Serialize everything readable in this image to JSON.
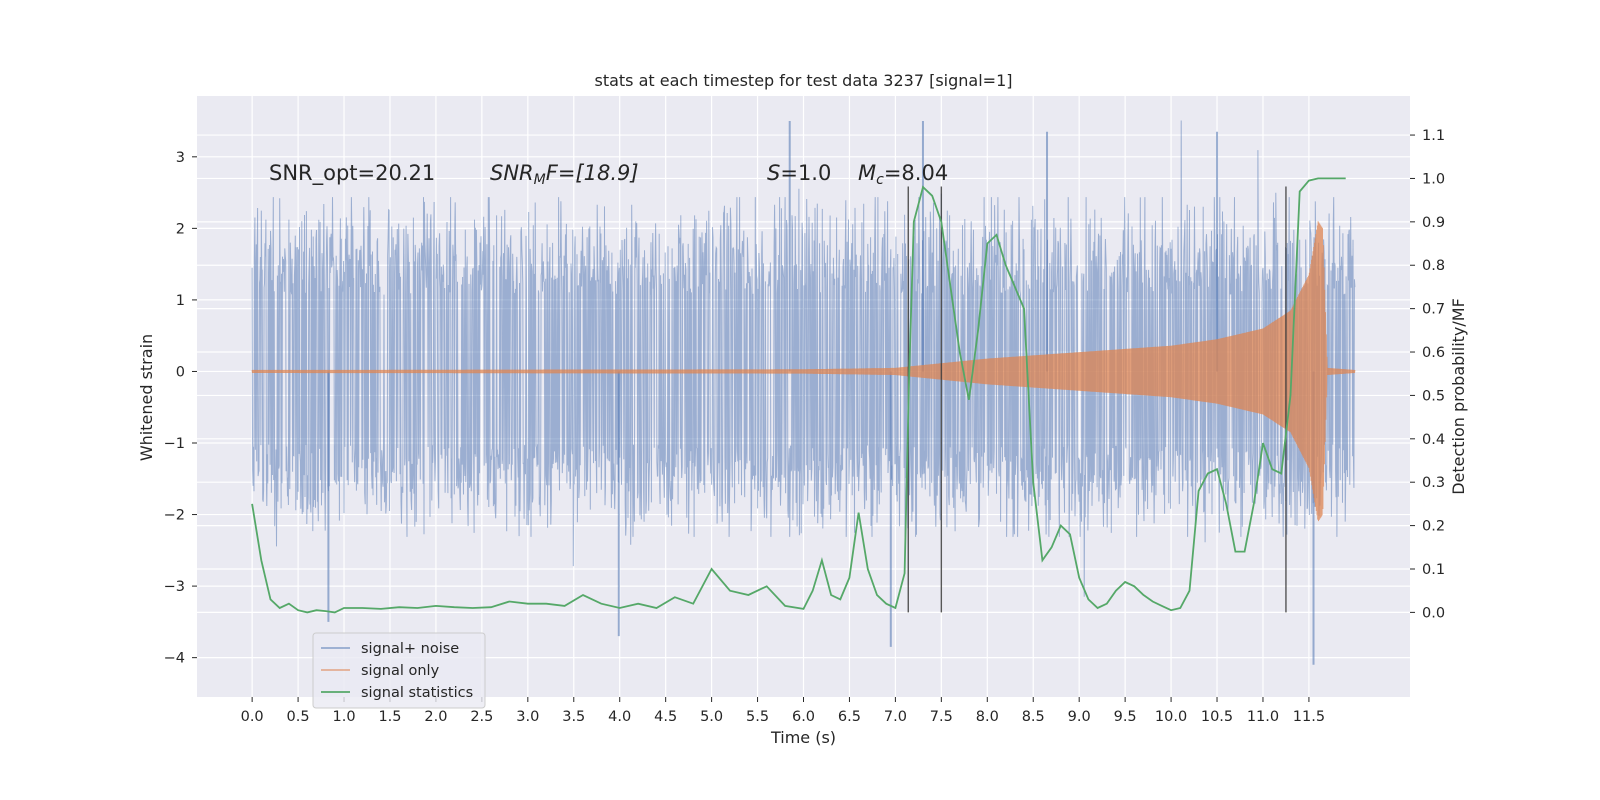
{
  "chart_data": {
    "type": "line",
    "title": "stats at each timestep for test data 3237 [signal=1]",
    "xlabel": "Time (s)",
    "ylabel_left": "Whitened strain",
    "ylabel_right": "Detection probability/MF",
    "xlim": [
      -0.6,
      12.6
    ],
    "ylim_left": [
      -4.55,
      3.85
    ],
    "ylim_right": [
      -0.195,
      1.19
    ],
    "x_ticks": [
      "0.0",
      "0.5",
      "1.0",
      "1.5",
      "2.0",
      "2.5",
      "3.0",
      "3.5",
      "4.0",
      "4.5",
      "5.0",
      "5.5",
      "6.0",
      "6.5",
      "7.0",
      "7.5",
      "8.0",
      "8.5",
      "9.0",
      "9.5",
      "10.0",
      "10.5",
      "11.0",
      "11.5"
    ],
    "y_ticks_left": [
      "−4",
      "−3",
      "−2",
      "−1",
      "0",
      "1",
      "2",
      "3"
    ],
    "y_ticks_right": [
      "0.0",
      "0.1",
      "0.2",
      "0.3",
      "0.4",
      "0.5",
      "0.6",
      "0.7",
      "0.8",
      "0.9",
      "1.0",
      "1.1"
    ],
    "annotations": {
      "snr_opt": "SNR_opt=20.21",
      "snr_mf_base": "SNR",
      "snr_mf_sub": "M",
      "snr_mf_suffix": "F=[18.9]",
      "spin_symbol": "S",
      "spin_value": "=1.0",
      "mc_symbol": "M",
      "mc_sub": "c",
      "mc_value": "=8.04"
    },
    "markers_x": [
      7.14,
      7.5,
      11.25
    ],
    "series": [
      {
        "name": "signal+ noise",
        "color": "#4c72b0",
        "axis": "left",
        "description": "whitened noisy strain, typical envelope ~[-1.8, 1.9] with spikes to about -4.1 and 3.5",
        "x_range": [
          0.0,
          12.0
        ],
        "envelope": [
          -1.85,
          1.95
        ],
        "spikes": [
          {
            "x": 0.83,
            "y": -3.5
          },
          {
            "x": 3.99,
            "y": -3.7
          },
          {
            "x": 5.85,
            "y": 3.5
          },
          {
            "x": 6.95,
            "y": -3.85
          },
          {
            "x": 7.3,
            "y": 3.5
          },
          {
            "x": 8.65,
            "y": 3.35
          },
          {
            "x": 10.5,
            "y": 3.35
          },
          {
            "x": 11.55,
            "y": -4.1
          }
        ]
      },
      {
        "name": "signal only",
        "color": "#dd8452",
        "axis": "left",
        "description": "inspiral chirp, amplitude grows toward merger near 11.65 s",
        "envelope_points": [
          [
            0.0,
            0.02
          ],
          [
            6.0,
            0.03
          ],
          [
            7.0,
            0.05
          ],
          [
            8.0,
            0.18
          ],
          [
            9.0,
            0.27
          ],
          [
            10.0,
            0.36
          ],
          [
            10.5,
            0.45
          ],
          [
            11.0,
            0.6
          ],
          [
            11.3,
            0.85
          ],
          [
            11.5,
            1.35
          ],
          [
            11.6,
            2.1
          ],
          [
            11.65,
            2.0
          ],
          [
            11.7,
            0.05
          ],
          [
            12.0,
            0.02
          ]
        ]
      },
      {
        "name": "signal statistics",
        "color": "#55a868",
        "axis": "right",
        "x": [
          0.0,
          0.1,
          0.2,
          0.3,
          0.4,
          0.5,
          0.6,
          0.7,
          0.8,
          0.9,
          1.0,
          1.2,
          1.4,
          1.6,
          1.8,
          2.0,
          2.2,
          2.4,
          2.6,
          2.8,
          3.0,
          3.2,
          3.4,
          3.6,
          3.8,
          4.0,
          4.2,
          4.4,
          4.6,
          4.8,
          5.0,
          5.2,
          5.4,
          5.6,
          5.8,
          6.0,
          6.1,
          6.2,
          6.3,
          6.4,
          6.5,
          6.6,
          6.7,
          6.8,
          6.9,
          7.0,
          7.1,
          7.15,
          7.2,
          7.3,
          7.4,
          7.5,
          7.6,
          7.7,
          7.8,
          7.9,
          8.0,
          8.1,
          8.2,
          8.3,
          8.4,
          8.5,
          8.6,
          8.7,
          8.8,
          8.9,
          9.0,
          9.1,
          9.2,
          9.3,
          9.4,
          9.5,
          9.6,
          9.7,
          9.8,
          9.9,
          10.0,
          10.1,
          10.2,
          10.3,
          10.4,
          10.5,
          10.6,
          10.7,
          10.8,
          10.9,
          11.0,
          11.1,
          11.2,
          11.3,
          11.4,
          11.5,
          11.6,
          11.7,
          11.8,
          11.9
        ],
        "values": [
          0.25,
          0.12,
          0.03,
          0.01,
          0.02,
          0.005,
          0.0,
          0.005,
          0.003,
          0.0,
          0.01,
          0.01,
          0.008,
          0.012,
          0.01,
          0.015,
          0.012,
          0.01,
          0.012,
          0.025,
          0.02,
          0.02,
          0.015,
          0.04,
          0.02,
          0.01,
          0.02,
          0.01,
          0.035,
          0.02,
          0.1,
          0.05,
          0.04,
          0.06,
          0.015,
          0.008,
          0.05,
          0.12,
          0.04,
          0.03,
          0.08,
          0.23,
          0.1,
          0.04,
          0.02,
          0.01,
          0.09,
          0.55,
          0.9,
          0.98,
          0.96,
          0.9,
          0.75,
          0.6,
          0.49,
          0.65,
          0.85,
          0.87,
          0.8,
          0.75,
          0.7,
          0.3,
          0.12,
          0.15,
          0.2,
          0.18,
          0.08,
          0.03,
          0.01,
          0.02,
          0.05,
          0.07,
          0.06,
          0.04,
          0.025,
          0.015,
          0.005,
          0.01,
          0.05,
          0.28,
          0.32,
          0.33,
          0.25,
          0.14,
          0.14,
          0.25,
          0.39,
          0.33,
          0.32,
          0.5,
          0.97,
          0.995,
          1.0,
          1.0,
          1.0,
          1.0
        ]
      }
    ],
    "legend": {
      "placement": "bottom-left",
      "entries": [
        "signal+ noise",
        "signal only",
        "signal statistics"
      ]
    }
  }
}
